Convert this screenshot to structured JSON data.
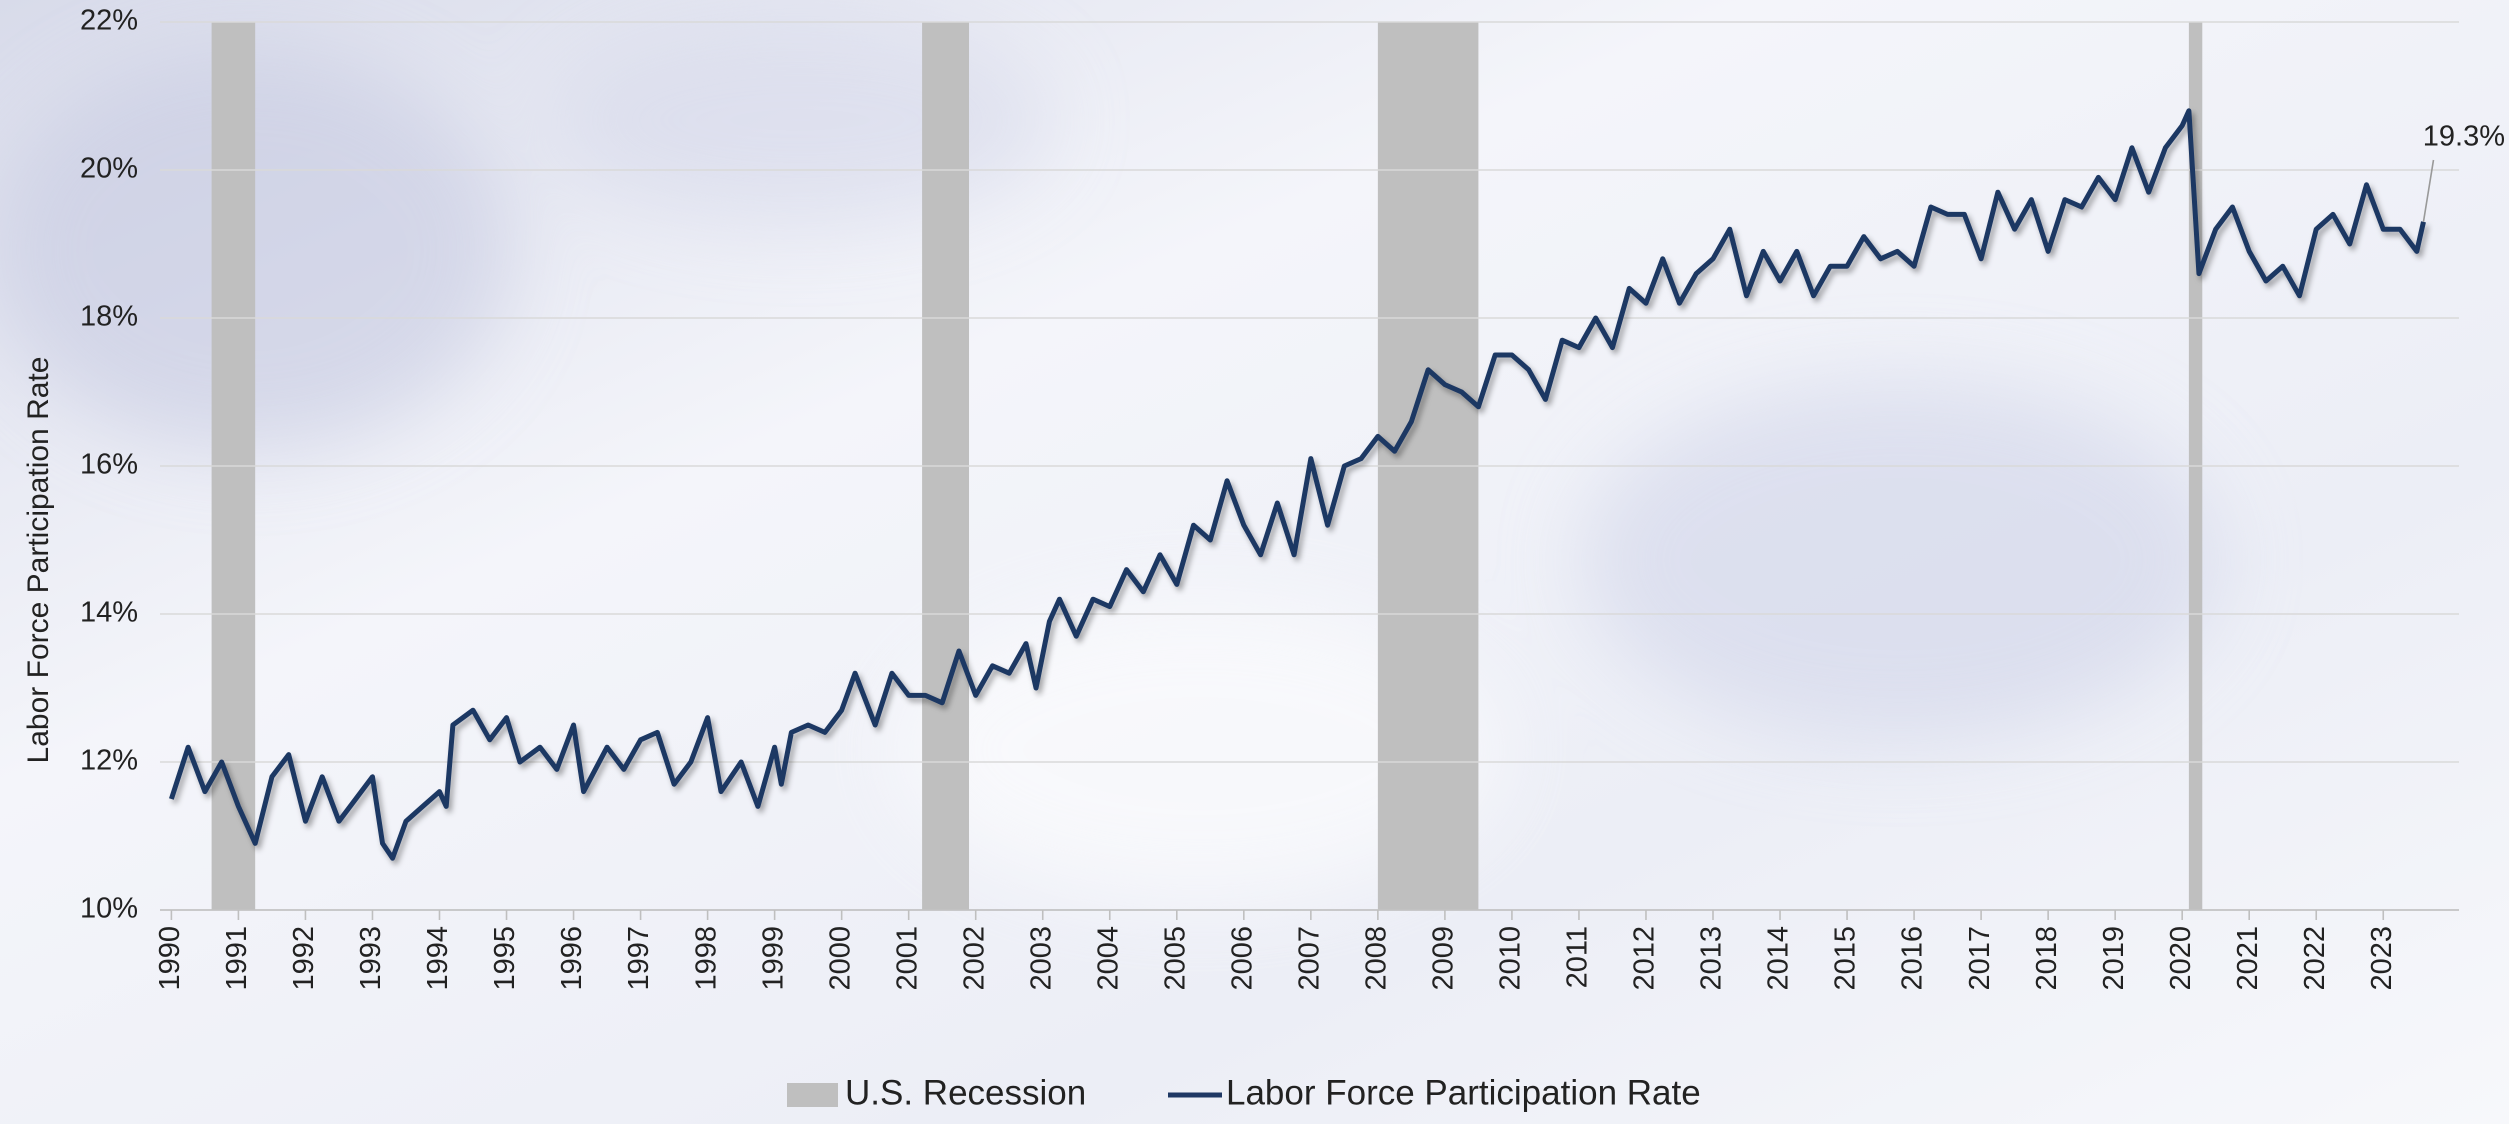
{
  "chart_data": {
    "type": "line",
    "ylabel": "Labor Force Participation Rate",
    "xlim": [
      1989.83,
      2024.13
    ],
    "xticks": [
      1990,
      1991,
      1992,
      1993,
      1994,
      1995,
      1996,
      1997,
      1998,
      1999,
      2000,
      2001,
      2002,
      2003,
      2004,
      2005,
      2006,
      2007,
      2008,
      2009,
      2010,
      2011,
      2012,
      2013,
      2014,
      2015,
      2016,
      2017,
      2018,
      2019,
      2020,
      2021,
      2022,
      2023
    ],
    "ylim": [
      10,
      22
    ],
    "yticks": [
      {
        "value": 10,
        "label": "10%"
      },
      {
        "value": 12,
        "label": "12%"
      },
      {
        "value": 14,
        "label": "14%"
      },
      {
        "value": 16,
        "label": "16%"
      },
      {
        "value": 18,
        "label": "18%"
      },
      {
        "value": 20,
        "label": "20%"
      },
      {
        "value": 22,
        "label": "22%"
      }
    ],
    "grid": true,
    "legend": "bottom",
    "recessions": {
      "name": "U.S. Recession",
      "color": "#bfbfbf",
      "ranges": [
        [
          1990.6,
          1991.25
        ],
        [
          2001.2,
          2001.9
        ],
        [
          2008.0,
          2009.5
        ],
        [
          2020.1,
          2020.3
        ]
      ]
    },
    "x": [
      1990,
      1990.25,
      1990.5,
      1990.75,
      1991,
      1991.25,
      1991.5,
      1991.75,
      1992,
      1992.25,
      1992.5,
      1992.75,
      1993,
      1993.15,
      1993.3,
      1993.5,
      1993.75,
      1994,
      1994.1,
      1994.2,
      1994.5,
      1994.75,
      1995,
      1995.2,
      1995.5,
      1995.75,
      1996,
      1996.15,
      1996.5,
      1996.75,
      1997,
      1997.25,
      1997.5,
      1997.75,
      1998,
      1998.2,
      1998.5,
      1998.75,
      1999,
      1999.1,
      1999.25,
      1999.5,
      1999.75,
      2000,
      2000.2,
      2000.5,
      2000.75,
      2001,
      2001.25,
      2001.5,
      2001.75,
      2002,
      2002.25,
      2002.5,
      2002.75,
      2002.9,
      2003.1,
      2003.25,
      2003.5,
      2003.75,
      2004,
      2004.25,
      2004.5,
      2004.75,
      2005,
      2005.25,
      2005.5,
      2005.75,
      2006,
      2006.25,
      2006.5,
      2006.75,
      2007,
      2007.25,
      2007.5,
      2007.75,
      2008,
      2008.25,
      2008.5,
      2008.75,
      2009,
      2009.25,
      2009.5,
      2009.75,
      2010,
      2010.25,
      2010.5,
      2010.75,
      2011,
      2011.25,
      2011.5,
      2011.75,
      2012,
      2012.25,
      2012.5,
      2012.75,
      2013,
      2013.25,
      2013.5,
      2013.75,
      2014,
      2014.25,
      2014.5,
      2014.75,
      2015,
      2015.25,
      2015.5,
      2015.75,
      2016,
      2016.25,
      2016.5,
      2016.75,
      2017,
      2017.25,
      2017.5,
      2017.75,
      2018,
      2018.25,
      2018.5,
      2018.75,
      2019,
      2019.25,
      2019.5,
      2019.75,
      2020,
      2020.1,
      2020.25,
      2020.5,
      2020.75,
      2021,
      2021.25,
      2021.5,
      2021.75,
      2022,
      2022.25,
      2022.5,
      2022.75,
      2023,
      2023.25,
      2023.5,
      2023.6
    ],
    "series": [
      {
        "name": "Labor Force Participation Rate",
        "color": "#1f3864",
        "values": [
          11.5,
          12.2,
          11.6,
          12.0,
          11.4,
          10.9,
          11.8,
          12.1,
          11.2,
          11.8,
          11.2,
          11.5,
          11.8,
          10.9,
          10.7,
          11.2,
          11.4,
          11.6,
          11.4,
          12.5,
          12.7,
          12.3,
          12.6,
          12.0,
          12.2,
          11.9,
          12.5,
          11.6,
          12.2,
          11.9,
          12.3,
          12.4,
          11.7,
          12.0,
          12.6,
          11.6,
          12.0,
          11.4,
          12.2,
          11.7,
          12.4,
          12.5,
          12.4,
          12.7,
          13.2,
          12.5,
          13.2,
          12.9,
          12.9,
          12.8,
          13.5,
          12.9,
          13.3,
          13.2,
          13.6,
          13.0,
          13.9,
          14.2,
          13.7,
          14.2,
          14.1,
          14.6,
          14.3,
          14.8,
          14.4,
          15.2,
          15.0,
          15.8,
          15.2,
          14.8,
          15.5,
          14.8,
          16.1,
          15.2,
          16.0,
          16.1,
          16.4,
          16.2,
          16.6,
          17.3,
          17.1,
          17.0,
          16.8,
          17.5,
          17.5,
          17.3,
          16.9,
          17.7,
          17.6,
          18.0,
          17.6,
          18.4,
          18.2,
          18.8,
          18.2,
          18.6,
          18.8,
          19.2,
          18.3,
          18.9,
          18.5,
          18.9,
          18.3,
          18.7,
          18.7,
          19.1,
          18.8,
          18.9,
          18.7,
          19.5,
          19.4,
          19.4,
          18.8,
          19.7,
          19.2,
          19.6,
          18.9,
          19.6,
          19.5,
          19.9,
          19.6,
          20.3,
          19.7,
          20.3,
          20.6,
          20.8,
          18.6,
          19.2,
          19.5,
          18.9,
          18.5,
          18.7,
          18.3,
          19.2,
          19.4,
          19.0,
          19.8,
          19.2,
          19.2,
          18.9,
          19.3
        ]
      }
    ],
    "annotation": {
      "label": "19.3%",
      "x": 2023.6,
      "y": 19.3
    }
  }
}
